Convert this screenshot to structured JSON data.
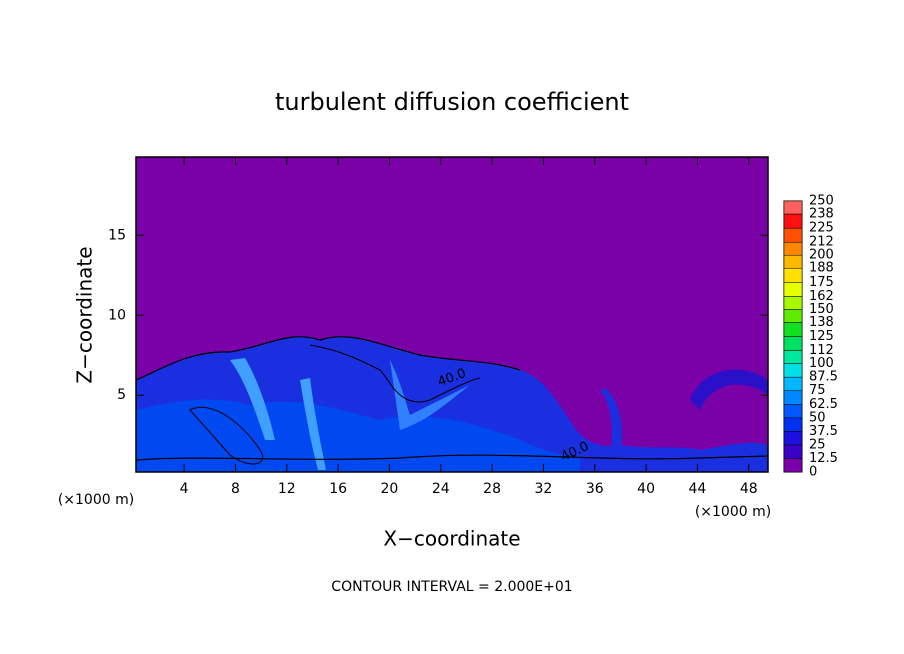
{
  "chart_data": {
    "type": "heatmap",
    "title": "turbulent diffusion coefficient",
    "x_label": "X−coordinate",
    "y_label": "Z−coordinate",
    "x_unit": "(×1000 m)",
    "x_unit_right": "(×1000 m)",
    "footer": "CONTOUR INTERVAL = 2.000E+01",
    "contour_labels": [
      "40.0",
      "40.0"
    ],
    "xlim": [
      0.25,
      49.5
    ],
    "ylim": [
      0.2,
      19.9
    ],
    "xticks": [
      4,
      8,
      12,
      16,
      20,
      24,
      28,
      32,
      36,
      40,
      44,
      48
    ],
    "yticks": [
      5,
      10,
      15
    ],
    "colorbar": {
      "levels": [
        0,
        12.5,
        25,
        37.5,
        50,
        62.5,
        75,
        87.5,
        100,
        112,
        125,
        138,
        150,
        162,
        175,
        188,
        200,
        212,
        225,
        238,
        250
      ],
      "colors": [
        "#7a00a8",
        "#3c00c8",
        "#1a10e0",
        "#0030f0",
        "#0058ff",
        "#0088ff",
        "#00b8ff",
        "#00e0e8",
        "#00e8a0",
        "#00e060",
        "#10e020",
        "#60ec00",
        "#a8f800",
        "#e8ff00",
        "#ffe000",
        "#ffb800",
        "#ff8800",
        "#ff5000",
        "#ff1010",
        "#ff6060"
      ]
    }
  }
}
